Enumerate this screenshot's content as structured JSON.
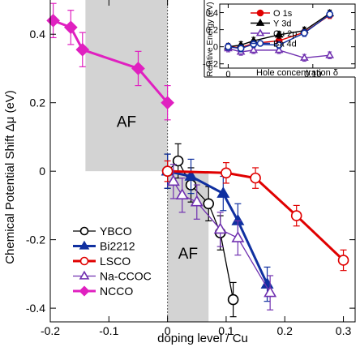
{
  "chart_data": [
    {
      "type": "line",
      "xlabel": "doping level / Cu",
      "ylabel": "Chemical Potential Shift Δμ (eV)",
      "xlim": [
        -0.2,
        0.32
      ],
      "ylim": [
        -0.44,
        0.5
      ],
      "x_ticks": [
        "-0.2",
        "-0.1",
        "0",
        "0.1",
        "0.2",
        "0.3"
      ],
      "y_ticks": [
        "-0.4",
        "-0.2",
        "0",
        "0.2",
        "0.4"
      ],
      "shaded_regions": [
        {
          "label": "AF",
          "x_range": [
            -0.14,
            0.0
          ],
          "y_range": [
            0.0,
            0.5
          ]
        },
        {
          "label": "AF",
          "x_range": [
            0.0,
            0.07
          ],
          "y_range": [
            -0.44,
            0.0
          ]
        }
      ],
      "legend_position": "bottom-left",
      "series": [
        {
          "name": "YBCO",
          "color": "#000000",
          "marker": "open-circle",
          "x": [
            0.0,
            0.018,
            0.04,
            0.07,
            0.09,
            0.112
          ],
          "y": [
            0.0,
            0.03,
            -0.04,
            -0.095,
            -0.18,
            -0.375
          ],
          "err": [
            0.05,
            0.05,
            0.05,
            0.05,
            0.05,
            0.05
          ]
        },
        {
          "name": "Bi2212",
          "color": "#1030a0",
          "marker": "filled-triangle",
          "x": [
            0.0,
            0.04,
            0.095,
            0.12,
            0.17
          ],
          "y": [
            0.0,
            -0.015,
            -0.065,
            -0.145,
            -0.33
          ],
          "err": [
            0.05,
            0.05,
            0.05,
            0.05,
            0.05
          ]
        },
        {
          "name": "LSCO",
          "color": "#e00000",
          "marker": "open-circle",
          "x": [
            0.0,
            0.1,
            0.15,
            0.22,
            0.3
          ],
          "y": [
            0.0,
            -0.005,
            -0.02,
            -0.13,
            -0.26
          ],
          "err": [
            0.03,
            0.03,
            0.03,
            0.03,
            0.03
          ]
        },
        {
          "name": "Na-CCOC",
          "color": "#7030b0",
          "marker": "open-triangle",
          "x": [
            0.01,
            0.025,
            0.05,
            0.09,
            0.12,
            0.175
          ],
          "y": [
            -0.03,
            -0.07,
            -0.09,
            -0.17,
            -0.195,
            -0.355
          ],
          "err": [
            0.05,
            0.05,
            0.05,
            0.05,
            0.05,
            0.05
          ]
        },
        {
          "name": "NCCO",
          "color": "#e020c0",
          "marker": "filled-diamond",
          "x": [
            -0.195,
            -0.165,
            -0.145,
            -0.05,
            0.0
          ],
          "y": [
            0.44,
            0.42,
            0.355,
            0.3,
            0.2
          ],
          "err": [
            0.05,
            0.05,
            0.05,
            0.05,
            0.05
          ]
        }
      ]
    },
    {
      "type": "line",
      "xlabel": "Hole concentration δ",
      "ylabel": "Relative Energy (eV)",
      "xlim": [
        -0.01,
        0.15
      ],
      "ylim": [
        -0.25,
        0.5
      ],
      "x_ticks": [
        "0",
        "0.10"
      ],
      "y_ticks": [
        "-0.2",
        "0",
        "0.2",
        "0.4"
      ],
      "legend_position": "top-left",
      "series": [
        {
          "name": "O 1s",
          "color": "#e00000",
          "marker": "filled-circle",
          "x": [
            0.0,
            0.015,
            0.03,
            0.06,
            0.09,
            0.12
          ],
          "y": [
            0.0,
            -0.01,
            0.04,
            0.07,
            0.17,
            0.37
          ],
          "err": [
            0.04,
            0.04,
            0.04,
            0.04,
            0.04,
            0.04
          ]
        },
        {
          "name": "Y 3d",
          "color": "#000000",
          "marker": "filled-triangle",
          "x": [
            0.0,
            0.015,
            0.03,
            0.06,
            0.09,
            0.12
          ],
          "y": [
            0.0,
            0.02,
            0.07,
            0.14,
            0.19,
            0.39
          ],
          "err": [
            0.04,
            0.04,
            0.04,
            0.04,
            0.04,
            0.04
          ]
        },
        {
          "name": "Cu 2p",
          "color": "#7030b0",
          "marker": "open-triangle",
          "x": [
            0.0,
            0.015,
            0.03,
            0.06,
            0.09,
            0.12
          ],
          "y": [
            -0.02,
            -0.06,
            -0.04,
            -0.04,
            -0.13,
            -0.1
          ],
          "err": [
            0.04,
            0.04,
            0.04,
            0.04,
            0.04,
            0.04
          ]
        },
        {
          "name": "Ba 4d",
          "color": "#1030a0",
          "marker": "open-circle",
          "x": [
            0.0,
            0.015,
            0.03,
            0.06,
            0.09,
            0.12
          ],
          "y": [
            0.0,
            -0.02,
            0.03,
            0.02,
            0.16,
            0.38
          ],
          "err": [
            0.04,
            0.04,
            0.04,
            0.04,
            0.04,
            0.04
          ]
        }
      ]
    }
  ]
}
